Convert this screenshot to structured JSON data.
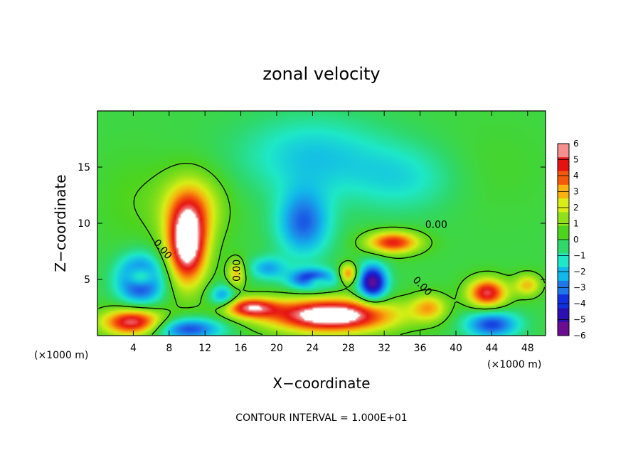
{
  "chart_data": {
    "type": "heatmap",
    "title": "zonal velocity",
    "xlabel": "X−coordinate",
    "ylabel": "Z−coordinate",
    "x_unit_left": "(×1000 m)",
    "x_unit_right": "(×1000 m)",
    "xlim": [
      0,
      50
    ],
    "ylim": [
      0,
      20
    ],
    "xticks": [
      4,
      8,
      12,
      16,
      20,
      24,
      28,
      32,
      36,
      40,
      44,
      48
    ],
    "xtick_labels": [
      "4",
      "8",
      "12",
      "16",
      "20",
      "24",
      "28",
      "32",
      "36",
      "40",
      "44",
      "48"
    ],
    "yticks": [
      5,
      10,
      15
    ],
    "ytick_labels": [
      "5",
      "10",
      "15"
    ],
    "colorbar": {
      "min": -6,
      "max": 6,
      "ticks": [
        6,
        5,
        4,
        3,
        2,
        1,
        0,
        -1,
        -2,
        -3,
        -4,
        -5,
        -6
      ],
      "tick_labels": [
        "6",
        "5",
        "4",
        "3",
        "2",
        "1",
        "0",
        "−1",
        "−2",
        "−3",
        "−4",
        "−5",
        "−6"
      ],
      "colors": [
        "#6a0d91",
        "#2b0fb3",
        "#1230e0",
        "#1f78e8",
        "#12b8ea",
        "#1ee8c8",
        "#2fd86b",
        "#4cd41e",
        "#8fe01a",
        "#d8ee16",
        "#f7b20f",
        "#f55a0c",
        "#e61212",
        "#f59090"
      ]
    },
    "contour_labels": [
      {
        "text": "0.00",
        "x": 7.0,
        "y": 7.5,
        "rotate": 50
      },
      {
        "text": "0.00",
        "x": 15.9,
        "y": 5.8,
        "rotate": -90
      },
      {
        "text": "0.00",
        "x": 36.0,
        "y": 4.2,
        "rotate": 45
      },
      {
        "text": "0.00",
        "x": 37.8,
        "y": 9.6,
        "rotate": 0
      }
    ],
    "features": [
      {
        "x": 4.8,
        "y": 5.0,
        "sx": 2.5,
        "sy": 2.0,
        "v": -5.5
      },
      {
        "x": 4.8,
        "y": 5.2,
        "sx": 1.5,
        "sy": 0.9,
        "v": 4.0
      },
      {
        "x": 10.0,
        "y": 8.0,
        "sx": 2.2,
        "sy": 3.5,
        "v": 7.0
      },
      {
        "x": 10.5,
        "y": 11.5,
        "sx": 3.5,
        "sy": 3.0,
        "v": 3.0
      },
      {
        "x": 23.0,
        "y": 10.0,
        "sx": 3.0,
        "sy": 3.0,
        "v": -3.5
      },
      {
        "x": 24.0,
        "y": 16.0,
        "sx": 8.0,
        "sy": 3.5,
        "v": -2.0
      },
      {
        "x": 26.0,
        "y": 1.8,
        "sx": 7.0,
        "sy": 1.5,
        "v": 7.5
      },
      {
        "x": 4.0,
        "y": 1.2,
        "sx": 3.5,
        "sy": 1.2,
        "v": 6.0
      },
      {
        "x": 10.0,
        "y": 0.6,
        "sx": 4.0,
        "sy": 1.0,
        "v": -4.0
      },
      {
        "x": 30.7,
        "y": 4.7,
        "sx": 1.6,
        "sy": 1.6,
        "v": -6.0
      },
      {
        "x": 33.0,
        "y": 8.3,
        "sx": 3.0,
        "sy": 1.0,
        "v": 5.0
      },
      {
        "x": 24.0,
        "y": 5.0,
        "sx": 2.5,
        "sy": 0.9,
        "v": -5.0
      },
      {
        "x": 24.5,
        "y": 4.8,
        "sx": 1.3,
        "sy": 0.5,
        "v": 3.0
      },
      {
        "x": 43.5,
        "y": 3.8,
        "sx": 2.2,
        "sy": 1.3,
        "v": 5.5
      },
      {
        "x": 44.0,
        "y": 1.0,
        "sx": 3.0,
        "sy": 1.2,
        "v": -4.0
      },
      {
        "x": 17.0,
        "y": 2.5,
        "sx": 3.0,
        "sy": 0.9,
        "v": 5.0
      },
      {
        "x": 28.0,
        "y": 5.5,
        "sx": 1.0,
        "sy": 0.9,
        "v": 4.0
      },
      {
        "x": 15.5,
        "y": 5.5,
        "sx": 1.0,
        "sy": 1.3,
        "v": 3.0
      },
      {
        "x": 48.0,
        "y": 4.5,
        "sx": 1.5,
        "sy": 1.0,
        "v": 3.0
      },
      {
        "x": 37.0,
        "y": 2.5,
        "sx": 2.0,
        "sy": 1.2,
        "v": 3.0
      },
      {
        "x": 19.0,
        "y": 6.0,
        "sx": 2.0,
        "sy": 1.0,
        "v": -2.5
      },
      {
        "x": 14.0,
        "y": 3.5,
        "sx": 1.5,
        "sy": 1.0,
        "v": -3.0
      },
      {
        "x": 34.0,
        "y": 14.0,
        "sx": 6.0,
        "sy": 3.0,
        "v": -1.5
      },
      {
        "x": 4.0,
        "y": 12.0,
        "sx": 4.0,
        "sy": 4.0,
        "v": 0.5
      },
      {
        "x": 44.0,
        "y": 15.0,
        "sx": 6.0,
        "sy": 4.0,
        "v": 0.3
      }
    ],
    "contour_interval_label": "CONTOUR INTERVAL =  1.000E+01"
  }
}
